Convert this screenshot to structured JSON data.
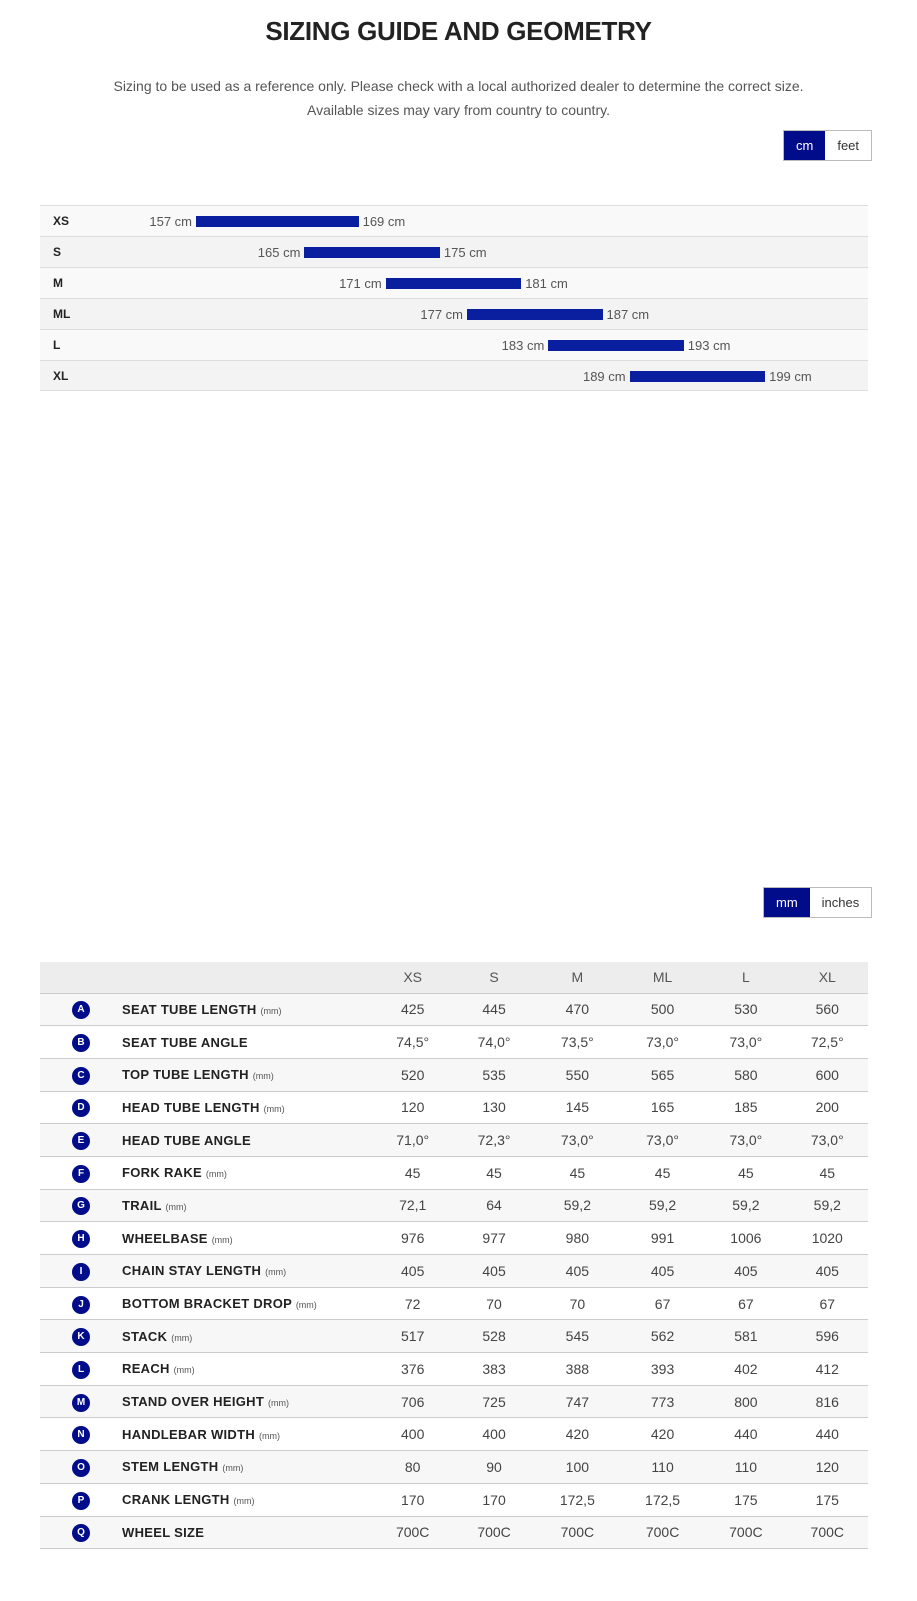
{
  "title": "SIZING GUIDE AND GEOMETRY",
  "subtitle1": "Sizing to be used as a reference only. Please check with a local authorized dealer to determine the correct size.",
  "subtitle2": "Available sizes may vary from country to country.",
  "height_toggle": {
    "options": [
      "cm",
      "feet"
    ],
    "selected": "cm"
  },
  "geo_toggle": {
    "options": [
      "mm",
      "inches"
    ],
    "selected": "mm"
  },
  "accent_color": "#0a1ea0",
  "height_ranges": [
    {
      "size": "XS",
      "min": 157,
      "max": 169,
      "min_label": "157 cm",
      "max_label": "169 cm"
    },
    {
      "size": "S",
      "min": 165,
      "max": 175,
      "min_label": "165 cm",
      "max_label": "175 cm"
    },
    {
      "size": "M",
      "min": 171,
      "max": 181,
      "min_label": "171 cm",
      "max_label": "181 cm"
    },
    {
      "size": "ML",
      "min": 177,
      "max": 187,
      "min_label": "177 cm",
      "max_label": "187 cm"
    },
    {
      "size": "L",
      "min": 183,
      "max": 193,
      "min_label": "183 cm",
      "max_label": "193 cm"
    },
    {
      "size": "XL",
      "min": 189,
      "max": 199,
      "min_label": "189 cm",
      "max_label": "199 cm"
    }
  ],
  "diagram_labels": [
    "A",
    "B",
    "C",
    "D",
    "E",
    "F",
    "G",
    "H",
    "I",
    "J",
    "K",
    "L",
    "M",
    "N",
    "O",
    "P",
    "Q"
  ],
  "geometry": {
    "sizes": [
      "XS",
      "S",
      "M",
      "ML",
      "L",
      "XL"
    ],
    "rows": [
      {
        "key": "A",
        "label": "SEAT TUBE LENGTH",
        "unit": "(mm)",
        "values": [
          "425",
          "445",
          "470",
          "500",
          "530",
          "560"
        ]
      },
      {
        "key": "B",
        "label": "SEAT TUBE ANGLE",
        "unit": "",
        "values": [
          "74,5°",
          "74,0°",
          "73,5°",
          "73,0°",
          "73,0°",
          "72,5°"
        ]
      },
      {
        "key": "C",
        "label": "TOP TUBE LENGTH",
        "unit": "(mm)",
        "values": [
          "520",
          "535",
          "550",
          "565",
          "580",
          "600"
        ]
      },
      {
        "key": "D",
        "label": "HEAD TUBE LENGTH",
        "unit": "(mm)",
        "values": [
          "120",
          "130",
          "145",
          "165",
          "185",
          "200"
        ]
      },
      {
        "key": "E",
        "label": "HEAD TUBE ANGLE",
        "unit": "",
        "values": [
          "71,0°",
          "72,3°",
          "73,0°",
          "73,0°",
          "73,0°",
          "73,0°"
        ]
      },
      {
        "key": "F",
        "label": "FORK RAKE",
        "unit": "(mm)",
        "values": [
          "45",
          "45",
          "45",
          "45",
          "45",
          "45"
        ]
      },
      {
        "key": "G",
        "label": "TRAIL",
        "unit": "(mm)",
        "values": [
          "72,1",
          "64",
          "59,2",
          "59,2",
          "59,2",
          "59,2"
        ]
      },
      {
        "key": "H",
        "label": "WHEELBASE",
        "unit": "(mm)",
        "values": [
          "976",
          "977",
          "980",
          "991",
          "1006",
          "1020"
        ]
      },
      {
        "key": "I",
        "label": "CHAIN STAY LENGTH",
        "unit": "(mm)",
        "values": [
          "405",
          "405",
          "405",
          "405",
          "405",
          "405"
        ]
      },
      {
        "key": "J",
        "label": "BOTTOM BRACKET DROP",
        "unit": "(mm)",
        "values": [
          "72",
          "70",
          "70",
          "67",
          "67",
          "67"
        ]
      },
      {
        "key": "K",
        "label": "STACK",
        "unit": "(mm)",
        "values": [
          "517",
          "528",
          "545",
          "562",
          "581",
          "596"
        ]
      },
      {
        "key": "L",
        "label": "REACH",
        "unit": "(mm)",
        "values": [
          "376",
          "383",
          "388",
          "393",
          "402",
          "412"
        ]
      },
      {
        "key": "M",
        "label": "STAND OVER HEIGHT",
        "unit": "(mm)",
        "values": [
          "706",
          "725",
          "747",
          "773",
          "800",
          "816"
        ]
      },
      {
        "key": "N",
        "label": "HANDLEBAR WIDTH",
        "unit": "(mm)",
        "values": [
          "400",
          "400",
          "420",
          "420",
          "440",
          "440"
        ]
      },
      {
        "key": "O",
        "label": "STEM LENGTH",
        "unit": "(mm)",
        "values": [
          "80",
          "90",
          "100",
          "110",
          "110",
          "120"
        ]
      },
      {
        "key": "P",
        "label": "CRANK LENGTH",
        "unit": "(mm)",
        "values": [
          "170",
          "170",
          "172,5",
          "172,5",
          "175",
          "175"
        ]
      },
      {
        "key": "Q",
        "label": "WHEEL SIZE",
        "unit": "",
        "values": [
          "700C",
          "700C",
          "700C",
          "700C",
          "700C",
          "700C"
        ]
      }
    ]
  }
}
